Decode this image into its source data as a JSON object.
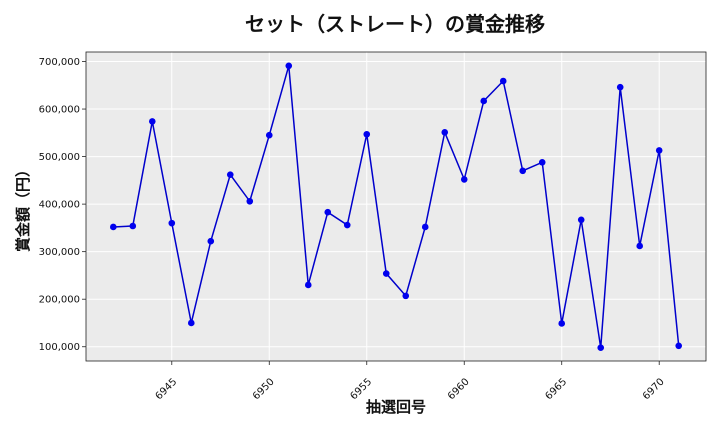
{
  "chart_data": {
    "type": "line",
    "title": "セット（ストレート）の賞金推移",
    "xlabel": "抽選回号",
    "ylabel": "賞金額（円）",
    "x": [
      6942,
      6943,
      6944,
      6945,
      6946,
      6947,
      6948,
      6949,
      6950,
      6951,
      6952,
      6953,
      6954,
      6955,
      6956,
      6957,
      6958,
      6959,
      6960,
      6961,
      6962,
      6963,
      6964,
      6965,
      6966,
      6967,
      6968,
      6969,
      6970,
      6971
    ],
    "series": [
      {
        "values": [
          352000,
          354000,
          574000,
          360000,
          150000,
          322000,
          462000,
          406000,
          545000,
          691000,
          230000,
          383000,
          356000,
          547000,
          254000,
          207000,
          352000,
          551000,
          452000,
          617000,
          659000,
          470000,
          488000,
          149000,
          367000,
          98000,
          646000,
          312000,
          513000,
          102000
        ]
      }
    ],
    "xticks": [
      6945,
      6950,
      6955,
      6960,
      6965,
      6970
    ],
    "xtick_labels": [
      "6945",
      "6950",
      "6955",
      "6960",
      "6965",
      "6970"
    ],
    "yticks": [
      100000,
      200000,
      300000,
      400000,
      500000,
      600000,
      700000
    ],
    "ytick_labels": [
      "100,000",
      "200,000",
      "300,000",
      "400,000",
      "500,000",
      "600,000",
      "700,000"
    ],
    "xlim": [
      6940.6,
      6972.4
    ],
    "ylim": [
      70000,
      720000
    ],
    "grid": true,
    "line_color": "#0000cc",
    "marker_color": "#0000ee",
    "plot_background": "#ebebeb"
  }
}
